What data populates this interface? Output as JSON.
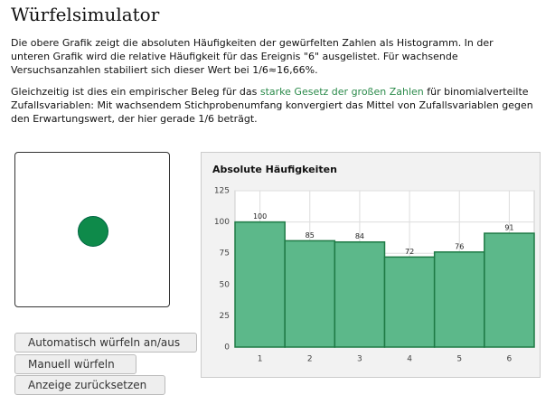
{
  "page": {
    "title": "Würfelsimulator",
    "intro": [
      "Die obere Grafik zeigt die absoluten Häufigkeiten der gewürfelten Zahlen als Histogramm. In der",
      "unteren Grafik wird die relative Häufigkeit für das Ereignis \"6\" ausgelistet. Für wachsende",
      "Versuchsanzahlen stabiliert sich dieser Wert bei 1/6≈16,66%."
    ],
    "evidence": {
      "before": "Gleichzeitig ist dies ein empirischer Beleg für das",
      "link": "starke Gesetz der großen Zahlen",
      "after": "für binomialverteilte",
      "lines": [
        "Zufallsvariablen: Mit wachsendem Stichprobenumfang konvergiert das Mittel von Zufallsvariablen gegen",
        "den Erwartungswert, der hier gerade 1/6 beträgt."
      ]
    },
    "buttons": [
      "Automatisch würfeln an/aus",
      "Manuell würfeln",
      "Anzeige zurücksetzen"
    ]
  },
  "chart_data": {
    "type": "bar",
    "title": "Absolute Häufigkeiten",
    "categories": [
      "1",
      "2",
      "3",
      "4",
      "5",
      "6"
    ],
    "values": [
      100,
      85,
      84,
      72,
      76,
      91
    ],
    "color": "#5cb88a",
    "edge_color": "#1e7a45",
    "ylim": [
      0,
      125
    ],
    "yticks": [
      0,
      25,
      50,
      75,
      100,
      125
    ],
    "grid": true
  }
}
